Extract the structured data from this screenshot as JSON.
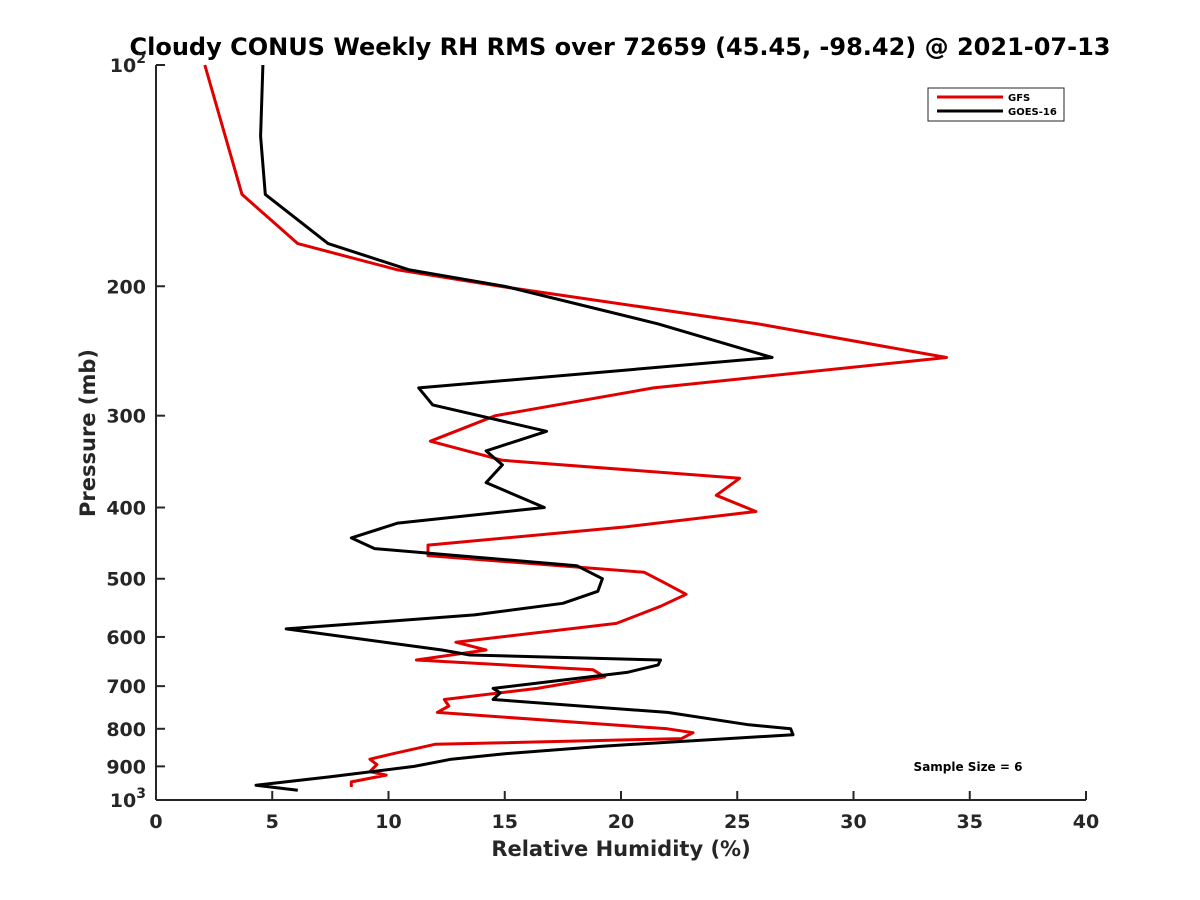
{
  "chart_data": {
    "type": "line",
    "title": "Cloudy CONUS Weekly RH RMS over 72659 (45.45, -98.42) @ 2021-07-13",
    "xlabel": "Relative Humidity (%)",
    "ylabel": "Pressure (mb)",
    "xlim": [
      0,
      40
    ],
    "ylim": [
      100,
      1000
    ],
    "y_scale": "log",
    "y_reversed": true,
    "grid": false,
    "legend_position": "top-right",
    "x_ticks": [
      "0",
      "5",
      "10",
      "15",
      "20",
      "25",
      "30",
      "35",
      "40"
    ],
    "y_ticks": [
      {
        "value": 100,
        "base": "10",
        "exp": "2"
      },
      {
        "value": 200,
        "label": "200"
      },
      {
        "value": 300,
        "label": "300"
      },
      {
        "value": 400,
        "label": "400"
      },
      {
        "value": 500,
        "label": "500"
      },
      {
        "value": 600,
        "label": "600"
      },
      {
        "value": 700,
        "label": "700"
      },
      {
        "value": 800,
        "label": "800"
      },
      {
        "value": 900,
        "label": "900"
      },
      {
        "value": 1000,
        "base": "10",
        "exp": "3"
      }
    ],
    "series": [
      {
        "name": "GFS",
        "color": "#e00000",
        "points": [
          [
            2.1,
            100
          ],
          [
            3.7,
            150
          ],
          [
            6.1,
            175
          ],
          [
            10.4,
            190
          ],
          [
            14.8,
            200
          ],
          [
            25.9,
            225
          ],
          [
            34.0,
            250
          ],
          [
            21.4,
            275
          ],
          [
            14.6,
            300
          ],
          [
            11.8,
            325
          ],
          [
            14.9,
            345
          ],
          [
            25.1,
            365
          ],
          [
            24.1,
            385
          ],
          [
            25.8,
            405
          ],
          [
            20.2,
            425
          ],
          [
            11.7,
            450
          ],
          [
            11.7,
            465
          ],
          [
            21.0,
            490
          ],
          [
            21.8,
            505
          ],
          [
            22.8,
            525
          ],
          [
            21.7,
            545
          ],
          [
            19.8,
            575
          ],
          [
            12.9,
            610
          ],
          [
            14.2,
            625
          ],
          [
            11.2,
            645
          ],
          [
            18.8,
            665
          ],
          [
            19.3,
            680
          ],
          [
            16.4,
            705
          ],
          [
            12.4,
            730
          ],
          [
            12.6,
            745
          ],
          [
            12.1,
            760
          ],
          [
            22.0,
            800
          ],
          [
            23.1,
            810
          ],
          [
            22.6,
            825
          ],
          [
            12.0,
            840
          ],
          [
            10.2,
            865
          ],
          [
            9.2,
            880
          ],
          [
            9.5,
            895
          ],
          [
            9.2,
            915
          ],
          [
            9.9,
            925
          ],
          [
            8.4,
            945
          ],
          [
            8.4,
            960
          ]
        ]
      },
      {
        "name": "GOES-16",
        "color": "#000000",
        "points": [
          [
            4.6,
            100
          ],
          [
            4.5,
            125
          ],
          [
            4.7,
            150
          ],
          [
            7.4,
            175
          ],
          [
            10.9,
            190
          ],
          [
            15.0,
            200
          ],
          [
            21.6,
            225
          ],
          [
            26.5,
            250
          ],
          [
            11.3,
            275
          ],
          [
            11.9,
            290
          ],
          [
            16.8,
            315
          ],
          [
            14.2,
            335
          ],
          [
            14.9,
            350
          ],
          [
            14.2,
            370
          ],
          [
            16.7,
            400
          ],
          [
            10.4,
            420
          ],
          [
            8.4,
            440
          ],
          [
            9.4,
            455
          ],
          [
            18.1,
            480
          ],
          [
            19.2,
            500
          ],
          [
            19.0,
            520
          ],
          [
            17.5,
            540
          ],
          [
            13.7,
            560
          ],
          [
            5.6,
            585
          ],
          [
            12.3,
            625
          ],
          [
            13.5,
            635
          ],
          [
            21.7,
            645
          ],
          [
            21.6,
            655
          ],
          [
            20.3,
            670
          ],
          [
            14.5,
            705
          ],
          [
            14.8,
            715
          ],
          [
            14.5,
            730
          ],
          [
            22.0,
            760
          ],
          [
            25.5,
            790
          ],
          [
            27.3,
            800
          ],
          [
            27.4,
            815
          ],
          [
            19.2,
            845
          ],
          [
            15.0,
            865
          ],
          [
            12.7,
            880
          ],
          [
            11.1,
            900
          ],
          [
            7.5,
            930
          ],
          [
            4.3,
            955
          ],
          [
            6.1,
            970
          ]
        ]
      }
    ],
    "annotation": "Sample Size = 6"
  }
}
